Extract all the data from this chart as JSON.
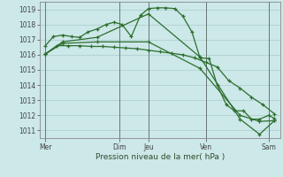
{
  "background_color": "#cce8e8",
  "grid_color": "#aacccc",
  "line_color": "#2d6e2d",
  "marker_color": "#2d6e2d",
  "xlabel_text": "Pression niveau de la mer( hPa )",
  "ylim": [
    1010.5,
    1019.5
  ],
  "yticks": [
    1011,
    1012,
    1013,
    1014,
    1015,
    1016,
    1017,
    1018,
    1019
  ],
  "xlim": [
    0,
    21
  ],
  "day_labels": [
    "Mer",
    "Dim",
    "Jeu",
    "Ven",
    "Sam"
  ],
  "day_positions": [
    0.5,
    7.0,
    9.5,
    14.5,
    20.0
  ],
  "vline_positions": [
    0.5,
    7.0,
    9.5,
    14.5,
    20.0
  ],
  "series1_x": [
    0.5,
    1.2,
    2.0,
    2.8,
    3.5,
    4.2,
    5.0,
    5.8,
    6.5,
    7.2,
    8.0,
    8.8,
    9.5,
    10.3,
    11.0,
    11.8,
    12.5,
    13.3,
    14.0,
    14.8,
    15.5,
    16.3,
    17.0,
    17.8,
    18.5,
    19.2,
    20.0,
    20.5
  ],
  "series1_y": [
    1016.6,
    1017.2,
    1017.3,
    1017.2,
    1017.15,
    1017.5,
    1017.7,
    1018.0,
    1018.15,
    1018.0,
    1017.2,
    1018.6,
    1019.05,
    1019.1,
    1019.1,
    1019.05,
    1018.55,
    1017.5,
    1015.8,
    1015.75,
    1014.0,
    1012.7,
    1012.3,
    1012.3,
    1011.75,
    1011.75,
    1012.0,
    1011.8
  ],
  "series2_x": [
    0.5,
    1.5,
    2.5,
    3.5,
    4.5,
    5.5,
    6.5,
    7.5,
    8.5,
    9.5,
    10.5,
    11.5,
    12.5,
    13.5,
    14.5,
    15.5,
    16.5,
    17.5,
    18.5,
    19.5,
    20.5
  ],
  "series2_y": [
    1016.05,
    1016.6,
    1016.6,
    1016.6,
    1016.55,
    1016.55,
    1016.5,
    1016.45,
    1016.4,
    1016.3,
    1016.2,
    1016.1,
    1016.0,
    1015.8,
    1015.5,
    1015.2,
    1014.3,
    1013.8,
    1013.2,
    1012.7,
    1012.1
  ],
  "series3_x": [
    0.5,
    2.0,
    5.0,
    9.5,
    14.0,
    17.5,
    19.2,
    20.5
  ],
  "series3_y": [
    1016.05,
    1016.85,
    1017.15,
    1018.7,
    1015.85,
    1011.75,
    1010.75,
    1011.65
  ],
  "series4_x": [
    0.5,
    2.0,
    5.0,
    9.5,
    14.0,
    17.5,
    19.2,
    20.5
  ],
  "series4_y": [
    1016.05,
    1016.75,
    1016.85,
    1016.85,
    1015.1,
    1012.0,
    1011.6,
    1011.65
  ]
}
